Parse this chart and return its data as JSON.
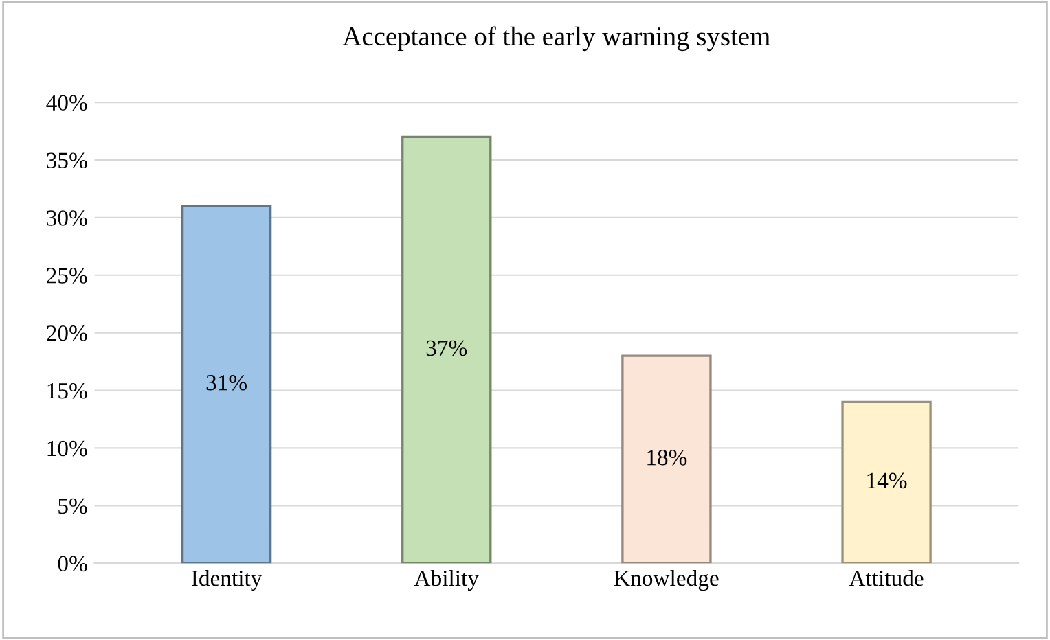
{
  "chart_data": {
    "type": "bar",
    "title": "Acceptance of the early warning system",
    "categories": [
      "Identity",
      "Ability",
      "Knowledge",
      "Attitude"
    ],
    "values": [
      31,
      37,
      18,
      14
    ],
    "value_labels": [
      "31%",
      "37%",
      "18%",
      "14%"
    ],
    "colors": [
      "#9dc3e6",
      "#c5e0b4",
      "#fbe5d6",
      "#fff2cc"
    ],
    "ylim": [
      0,
      40
    ],
    "yticks": [
      {
        "value": 0,
        "label": "0%"
      },
      {
        "value": 5,
        "label": "5%"
      },
      {
        "value": 10,
        "label": "10%"
      },
      {
        "value": 15,
        "label": "15%"
      },
      {
        "value": 20,
        "label": "20%"
      },
      {
        "value": 25,
        "label": "25%"
      },
      {
        "value": 30,
        "label": "30%"
      },
      {
        "value": 35,
        "label": "35%"
      },
      {
        "value": 40,
        "label": "40%"
      }
    ],
    "grid": "y"
  }
}
